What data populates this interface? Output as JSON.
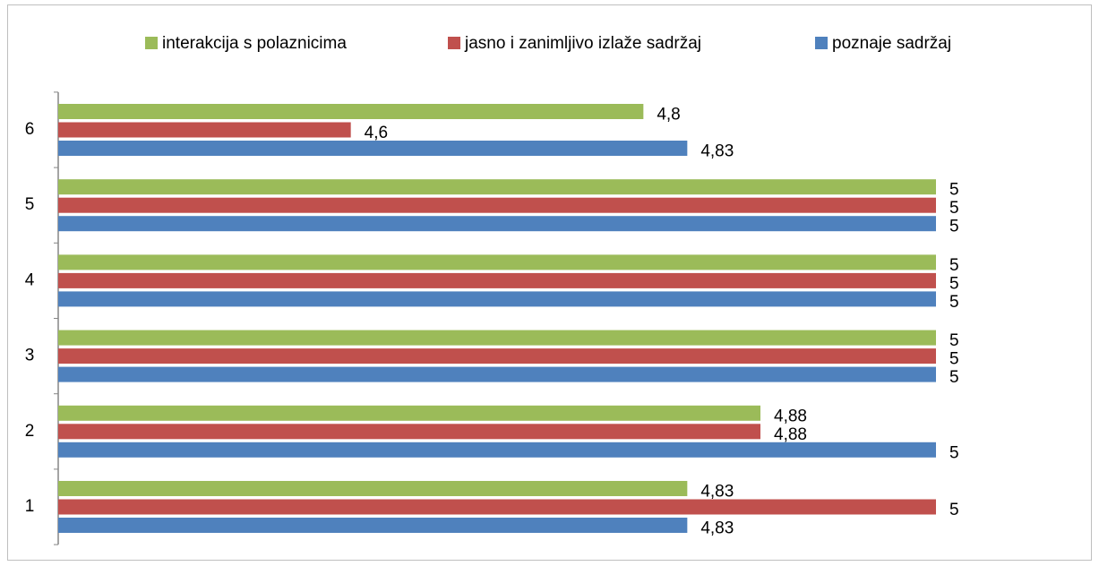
{
  "chart_data": {
    "type": "barh",
    "categories": [
      "1",
      "2",
      "3",
      "4",
      "5",
      "6"
    ],
    "series": [
      {
        "name": "interakcija s polaznicima",
        "color": "#9bbb59",
        "values": [
          4.83,
          4.88,
          5,
          5,
          5,
          4.8
        ],
        "value_labels": [
          "4,83",
          "4,88",
          "5",
          "5",
          "5",
          "4,8"
        ]
      },
      {
        "name": "jasno i zanimljivo izlaže sadržaj",
        "color": "#c0504d",
        "values": [
          5,
          4.88,
          5,
          5,
          5,
          4.6
        ],
        "value_labels": [
          "5",
          "4,88",
          "5",
          "5",
          "5",
          "4,6"
        ]
      },
      {
        "name": "poznaje sadržaj",
        "color": "#4f81bd",
        "values": [
          4.83,
          5,
          5,
          5,
          5,
          4.83
        ],
        "value_labels": [
          "4,83",
          "5",
          "5",
          "5",
          "5",
          "4,83"
        ]
      }
    ],
    "xlim": [
      4.4,
      5
    ],
    "legend": "top"
  }
}
